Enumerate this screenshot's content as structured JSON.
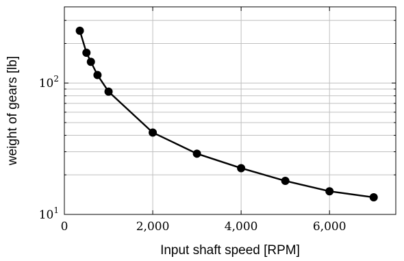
{
  "chart_data": {
    "type": "line",
    "xlabel": "Input shaft speed [RPM]",
    "ylabel": "weight of gears [lb]",
    "x_scale": "linear",
    "y_scale": "log",
    "xlim": [
      0,
      7500
    ],
    "ylim": [
      10,
      380
    ],
    "grid": true,
    "x_ticks": [
      0,
      2000,
      4000,
      6000
    ],
    "x_tick_labels": [
      "0",
      "2,000",
      "4,000",
      "6,000"
    ],
    "y_major_ticks": [
      10,
      100
    ],
    "y_tick_labels": [
      {
        "base": "10",
        "exp": "1"
      },
      {
        "base": "10",
        "exp": "2"
      }
    ],
    "series": [
      {
        "x": [
          350,
          500,
          600,
          750,
          1000,
          2000,
          3000,
          4000,
          5000,
          6000,
          7000
        ],
        "y": [
          250,
          170,
          145,
          115,
          86,
          42,
          29,
          22.5,
          18,
          15,
          13.5
        ]
      }
    ]
  }
}
